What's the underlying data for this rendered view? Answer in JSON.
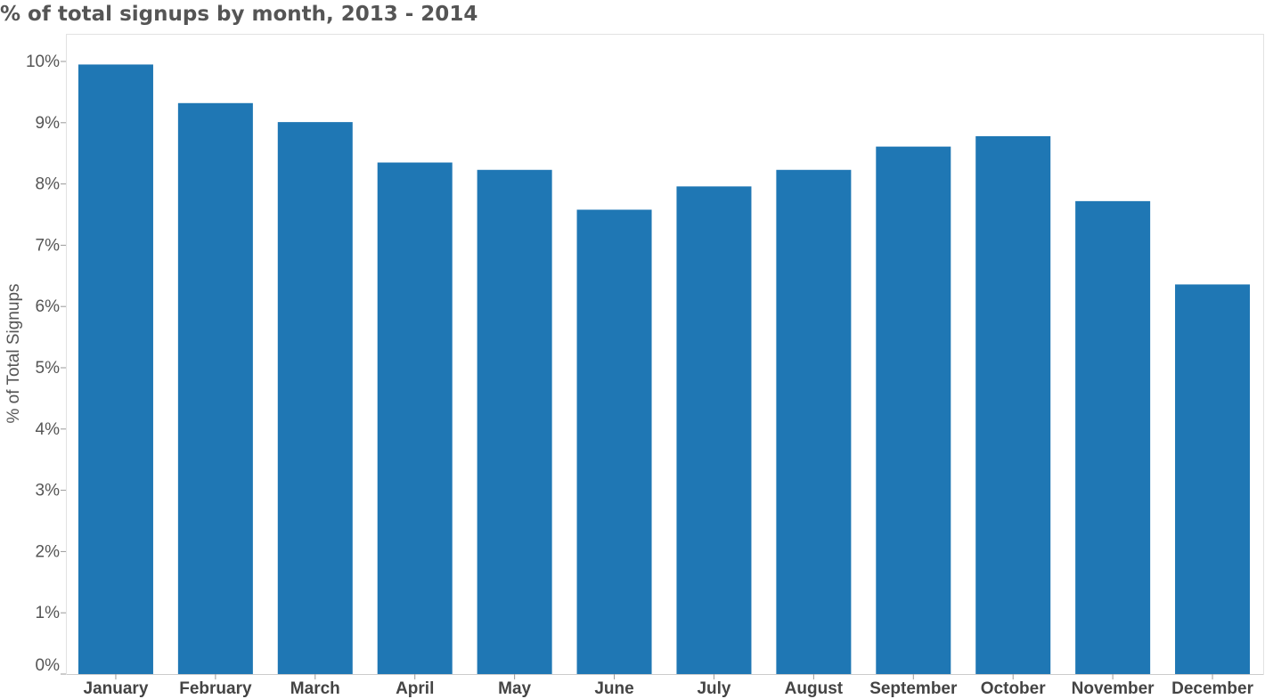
{
  "chart_data": {
    "type": "bar",
    "title": "% of total signups by month, 2013 - 2014",
    "xlabel": "",
    "ylabel": "% of Total Signups",
    "categories": [
      "January",
      "February",
      "March",
      "April",
      "May",
      "June",
      "July",
      "August",
      "September",
      "October",
      "November",
      "December"
    ],
    "values": [
      9.95,
      9.32,
      9.01,
      8.35,
      8.23,
      7.58,
      7.96,
      8.23,
      8.61,
      8.78,
      7.72,
      6.36
    ],
    "ylim": [
      0,
      10.5
    ],
    "yticks": [
      0,
      1,
      2,
      3,
      4,
      5,
      6,
      7,
      8,
      9,
      10
    ],
    "ytick_labels": [
      "0%",
      "1%",
      "2%",
      "3%",
      "4%",
      "5%",
      "6%",
      "7%",
      "8%",
      "9%",
      "10%"
    ],
    "bar_color": "#1f77b4",
    "grid": false,
    "legend": "none"
  }
}
